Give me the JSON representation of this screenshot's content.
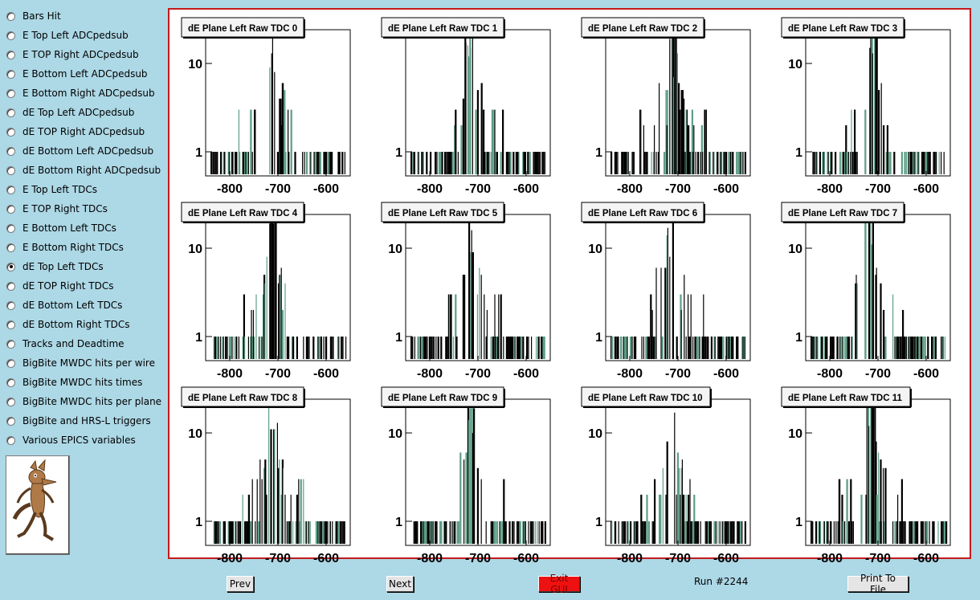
{
  "sidebar": {
    "items": [
      {
        "label": "Bars Hit",
        "selected": false
      },
      {
        "label": "E Top Left ADCpedsub",
        "selected": false
      },
      {
        "label": "E TOP Right ADCpedsub",
        "selected": false
      },
      {
        "label": "E Bottom Left ADCpedsub",
        "selected": false
      },
      {
        "label": "E Bottom Right ADCpedsub",
        "selected": false
      },
      {
        "label": "dE Top Left ADCpedsub",
        "selected": false
      },
      {
        "label": "dE TOP Right ADCpedsub",
        "selected": false
      },
      {
        "label": "dE Bottom Left ADCpedsub",
        "selected": false
      },
      {
        "label": "dE Bottom Right ADCpedsub",
        "selected": false
      },
      {
        "label": "E Top Left TDCs",
        "selected": false
      },
      {
        "label": "E TOP Right TDCs",
        "selected": false
      },
      {
        "label": "E Bottom Left TDCs",
        "selected": false
      },
      {
        "label": "E Bottom Right TDCs",
        "selected": false
      },
      {
        "label": "dE Top Left TDCs",
        "selected": true
      },
      {
        "label": "dE TOP Right TDCs",
        "selected": false
      },
      {
        "label": "dE Bottom Left TDCs",
        "selected": false
      },
      {
        "label": "dE Bottom Right TDCs",
        "selected": false
      },
      {
        "label": "Tracks and Deadtime",
        "selected": false
      },
      {
        "label": "BigBite MWDC hits per wire",
        "selected": false
      },
      {
        "label": "BigBite MWDC hits times",
        "selected": false
      },
      {
        "label": "BigBite MWDC hits per plane",
        "selected": false
      },
      {
        "label": "BigBite and HRS-L triggers",
        "selected": false
      },
      {
        "label": "Various EPICS variables",
        "selected": false
      }
    ],
    "mascot_icon": "coyote-mascot-icon"
  },
  "buttons": {
    "prev": "Prev",
    "next": "Next",
    "exit": "Exit GUI",
    "print": "Print To File"
  },
  "run_label": "Run #2244",
  "colors": {
    "background": "#add8e6",
    "frame_border": "#c41a1a",
    "histogram_primary": "#000000",
    "histogram_secondary": "#5f9e86",
    "exit_button": "#ee1111"
  },
  "chart_data": [
    {
      "type": "bar",
      "title": "dE Plane Left Raw TDC 0",
      "x_ticks": [
        "-800",
        "-700",
        "-600"
      ],
      "y_ticks": [
        "1",
        "10"
      ],
      "y_scale": "log",
      "xlim": [
        -850,
        -550
      ]
    },
    {
      "type": "bar",
      "title": "dE Plane Left Raw TDC 1",
      "x_ticks": [
        "-800",
        "-700",
        "-600"
      ],
      "y_ticks": [
        "1"
      ],
      "y_scale": "log",
      "xlim": [
        -850,
        -550
      ]
    },
    {
      "type": "bar",
      "title": "dE Plane Left Raw TDC 2",
      "x_ticks": [
        "-800",
        "-700",
        "-600"
      ],
      "y_ticks": [
        "1"
      ],
      "y_scale": "log",
      "xlim": [
        -850,
        -550
      ]
    },
    {
      "type": "bar",
      "title": "dE Plane Left Raw TDC 3",
      "x_ticks": [
        "-800",
        "-700",
        "-600"
      ],
      "y_ticks": [
        "1",
        "10"
      ],
      "y_scale": "log",
      "xlim": [
        -850,
        -550
      ]
    },
    {
      "type": "bar",
      "title": "dE Plane Left Raw TDC 4",
      "x_ticks": [
        "-800",
        "-700",
        "-600"
      ],
      "y_ticks": [
        "1",
        "10"
      ],
      "y_scale": "log",
      "xlim": [
        -850,
        -550
      ]
    },
    {
      "type": "bar",
      "title": "dE Plane Left Raw TDC 5",
      "x_ticks": [
        "-800",
        "-700",
        "-600"
      ],
      "y_ticks": [
        "1",
        "10"
      ],
      "y_scale": "log",
      "xlim": [
        -850,
        -550
      ]
    },
    {
      "type": "bar",
      "title": "dE Plane Left Raw TDC 6",
      "x_ticks": [
        "-800",
        "-700",
        "-600"
      ],
      "y_ticks": [
        "1",
        "10"
      ],
      "y_scale": "log",
      "xlim": [
        -850,
        -550
      ]
    },
    {
      "type": "bar",
      "title": "dE Plane Left Raw TDC 7",
      "x_ticks": [
        "-800",
        "-700",
        "-600"
      ],
      "y_ticks": [
        "1",
        "10"
      ],
      "y_scale": "log",
      "xlim": [
        -850,
        -550
      ]
    },
    {
      "type": "bar",
      "title": "dE Plane Left Raw TDC 8",
      "x_ticks": [
        "-800",
        "-700",
        "-600"
      ],
      "y_ticks": [
        "1",
        "10"
      ],
      "y_scale": "log",
      "xlim": [
        -850,
        -550
      ]
    },
    {
      "type": "bar",
      "title": "dE Plane Left Raw TDC 9",
      "x_ticks": [
        "-800",
        "-700",
        "-600"
      ],
      "y_ticks": [
        "1",
        "10"
      ],
      "y_scale": "log",
      "xlim": [
        -850,
        -550
      ]
    },
    {
      "type": "bar",
      "title": "dE Plane Left Raw TDC 10",
      "x_ticks": [
        "-800",
        "-700",
        "-600"
      ],
      "y_ticks": [
        "1",
        "10"
      ],
      "y_scale": "log",
      "xlim": [
        -850,
        -550
      ]
    },
    {
      "type": "bar",
      "title": "dE Plane Left Raw TDC 11",
      "x_ticks": [
        "-800",
        "-700",
        "-600"
      ],
      "y_ticks": [
        "1",
        "10"
      ],
      "y_scale": "log",
      "xlim": [
        -850,
        -550
      ]
    }
  ]
}
